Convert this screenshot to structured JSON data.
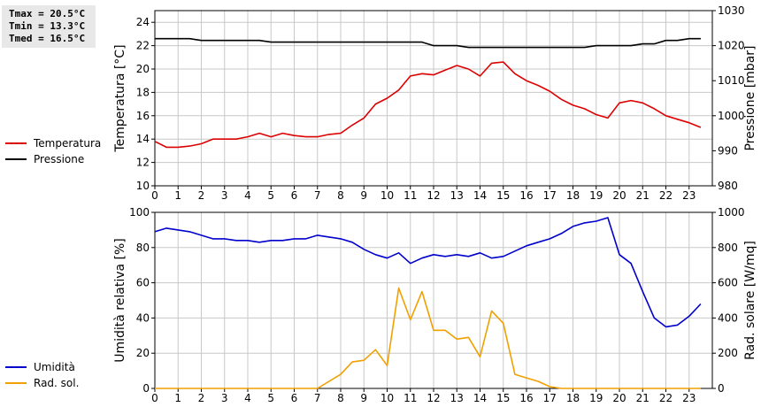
{
  "summary": {
    "tmax": "Tmax = 20.5°C",
    "tmin": "Tmin = 13.3°C",
    "tmed": "Tmed = 16.5°C"
  },
  "colors": {
    "temperature": "#dd0000",
    "pressure": "#000000",
    "humidity": "#0000cc",
    "radiation": "#f0a000",
    "grid": "#c8c8c8"
  },
  "chart_data": [
    {
      "type": "line",
      "title": "",
      "xlabel": "",
      "x_ticks": [
        "0",
        "1",
        "2",
        "3",
        "4",
        "5",
        "6",
        "7",
        "8",
        "9",
        "10",
        "11",
        "12",
        "13",
        "14",
        "15",
        "16",
        "17",
        "18",
        "19",
        "20",
        "21",
        "22",
        "23"
      ],
      "xlim": [
        0,
        24
      ],
      "ylabel": "Temperatura [°C]",
      "ylim": [
        10,
        25
      ],
      "y_ticks": [
        "10",
        "12",
        "14",
        "16",
        "18",
        "20",
        "22",
        "24"
      ],
      "y2label": "Pressione [mbar]",
      "y2lim": [
        980,
        1030
      ],
      "y2_ticks": [
        "980",
        "990",
        "1000",
        "1010",
        "1020",
        "1030"
      ],
      "grid": true,
      "legend_position": "left",
      "series": [
        {
          "name": "Temperatura",
          "axis": "left",
          "x": [
            0,
            0.5,
            1,
            1.5,
            2,
            2.5,
            3,
            3.5,
            4,
            4.5,
            5,
            5.5,
            6,
            6.5,
            7,
            7.5,
            8,
            8.5,
            9,
            9.5,
            10,
            10.5,
            11,
            11.5,
            12,
            12.5,
            13,
            13.5,
            14,
            14.5,
            15,
            15.5,
            16,
            16.5,
            17,
            17.5,
            18,
            18.5,
            19,
            19.5,
            20,
            20.5,
            21,
            21.5,
            22,
            22.5,
            23,
            23.5
          ],
          "values": [
            13.8,
            13.3,
            13.3,
            13.4,
            13.6,
            14.0,
            14.0,
            14.0,
            14.2,
            14.5,
            14.2,
            14.5,
            14.3,
            14.2,
            14.2,
            14.4,
            14.5,
            15.2,
            15.8,
            17.0,
            17.5,
            18.2,
            19.4,
            19.6,
            19.5,
            19.9,
            20.3,
            20.0,
            19.4,
            20.5,
            20.6,
            19.6,
            19.0,
            18.6,
            18.1,
            17.4,
            16.9,
            16.6,
            16.1,
            15.8,
            17.1,
            17.3,
            17.1,
            16.6,
            16.0,
            15.7,
            15.4,
            15.0
          ]
        },
        {
          "name": "Pressione",
          "axis": "right",
          "x": [
            0,
            0.5,
            1,
            1.5,
            2,
            2.5,
            3,
            3.5,
            4,
            4.5,
            5,
            5.5,
            6,
            6.5,
            7,
            7.5,
            8,
            8.5,
            9,
            9.5,
            10,
            10.5,
            11,
            11.5,
            12,
            12.5,
            13,
            13.5,
            14,
            14.5,
            15,
            15.5,
            16,
            16.5,
            17,
            17.5,
            18,
            18.5,
            19,
            19.5,
            20,
            20.5,
            21,
            21.5,
            22,
            22.5,
            23,
            23.5
          ],
          "values": [
            1022,
            1022,
            1022,
            1022,
            1021.5,
            1021.5,
            1021.5,
            1021.5,
            1021.5,
            1021.5,
            1021,
            1021,
            1021,
            1021,
            1021,
            1021,
            1021,
            1021,
            1021,
            1021,
            1021,
            1021,
            1021,
            1021,
            1020,
            1020,
            1020,
            1019.5,
            1019.5,
            1019.5,
            1019.5,
            1019.5,
            1019.5,
            1019.5,
            1019.5,
            1019.5,
            1019.5,
            1019.5,
            1020,
            1020,
            1020,
            1020,
            1020.5,
            1020.5,
            1021.5,
            1021.5,
            1022,
            1022
          ]
        }
      ]
    },
    {
      "type": "line",
      "title": "",
      "xlabel": "",
      "x_ticks": [
        "0",
        "1",
        "2",
        "3",
        "4",
        "5",
        "6",
        "7",
        "8",
        "9",
        "10",
        "11",
        "12",
        "13",
        "14",
        "15",
        "16",
        "17",
        "18",
        "19",
        "20",
        "21",
        "22",
        "23"
      ],
      "xlim": [
        0,
        24
      ],
      "ylabel": "Umidità relativa [%]",
      "ylim": [
        0,
        100
      ],
      "y_ticks": [
        "0",
        "20",
        "40",
        "60",
        "80",
        "100"
      ],
      "y2label": "Rad. solare [W/mq]",
      "y2lim": [
        0,
        1000
      ],
      "y2_ticks": [
        "0",
        "200",
        "400",
        "600",
        "800",
        "1000"
      ],
      "grid": true,
      "legend_position": "left",
      "series": [
        {
          "name": "Umidità",
          "axis": "left",
          "x": [
            0,
            0.5,
            1,
            1.5,
            2,
            2.5,
            3,
            3.5,
            4,
            4.5,
            5,
            5.5,
            6,
            6.5,
            7,
            7.5,
            8,
            8.5,
            9,
            9.5,
            10,
            10.5,
            11,
            11.5,
            12,
            12.5,
            13,
            13.5,
            14,
            14.5,
            15,
            15.5,
            16,
            16.5,
            17,
            17.5,
            18,
            18.5,
            19,
            19.5,
            20,
            20.5,
            21,
            21.5,
            22,
            22.5,
            23,
            23.5
          ],
          "values": [
            89,
            91,
            90,
            89,
            87,
            85,
            85,
            84,
            84,
            83,
            84,
            84,
            85,
            85,
            87,
            86,
            85,
            83,
            79,
            76,
            74,
            77,
            71,
            74,
            76,
            75,
            76,
            75,
            77,
            74,
            75,
            78,
            81,
            83,
            85,
            88,
            92,
            94,
            95,
            97,
            76,
            71,
            55,
            40,
            35,
            36,
            41,
            48
          ]
        },
        {
          "name": "Rad. sol.",
          "axis": "right",
          "x": [
            0,
            0.5,
            1,
            1.5,
            2,
            2.5,
            3,
            3.5,
            4,
            4.5,
            5,
            5.5,
            6,
            6.5,
            7,
            7.5,
            8,
            8.5,
            9,
            9.5,
            10,
            10.5,
            11,
            11.5,
            12,
            12.5,
            13,
            13.5,
            14,
            14.5,
            15,
            15.5,
            16,
            16.5,
            17,
            17.5,
            18,
            18.5,
            19,
            19.5,
            20,
            20.5,
            21,
            21.5,
            22,
            22.5,
            23,
            23.5
          ],
          "values": [
            0,
            0,
            0,
            0,
            0,
            0,
            0,
            0,
            0,
            0,
            0,
            0,
            0,
            0,
            0,
            40,
            80,
            150,
            160,
            220,
            130,
            570,
            390,
            550,
            330,
            330,
            280,
            290,
            180,
            440,
            370,
            80,
            60,
            40,
            10,
            0,
            0,
            0,
            0,
            0,
            0,
            0,
            0,
            0,
            0,
            0,
            0,
            0
          ]
        }
      ]
    }
  ]
}
